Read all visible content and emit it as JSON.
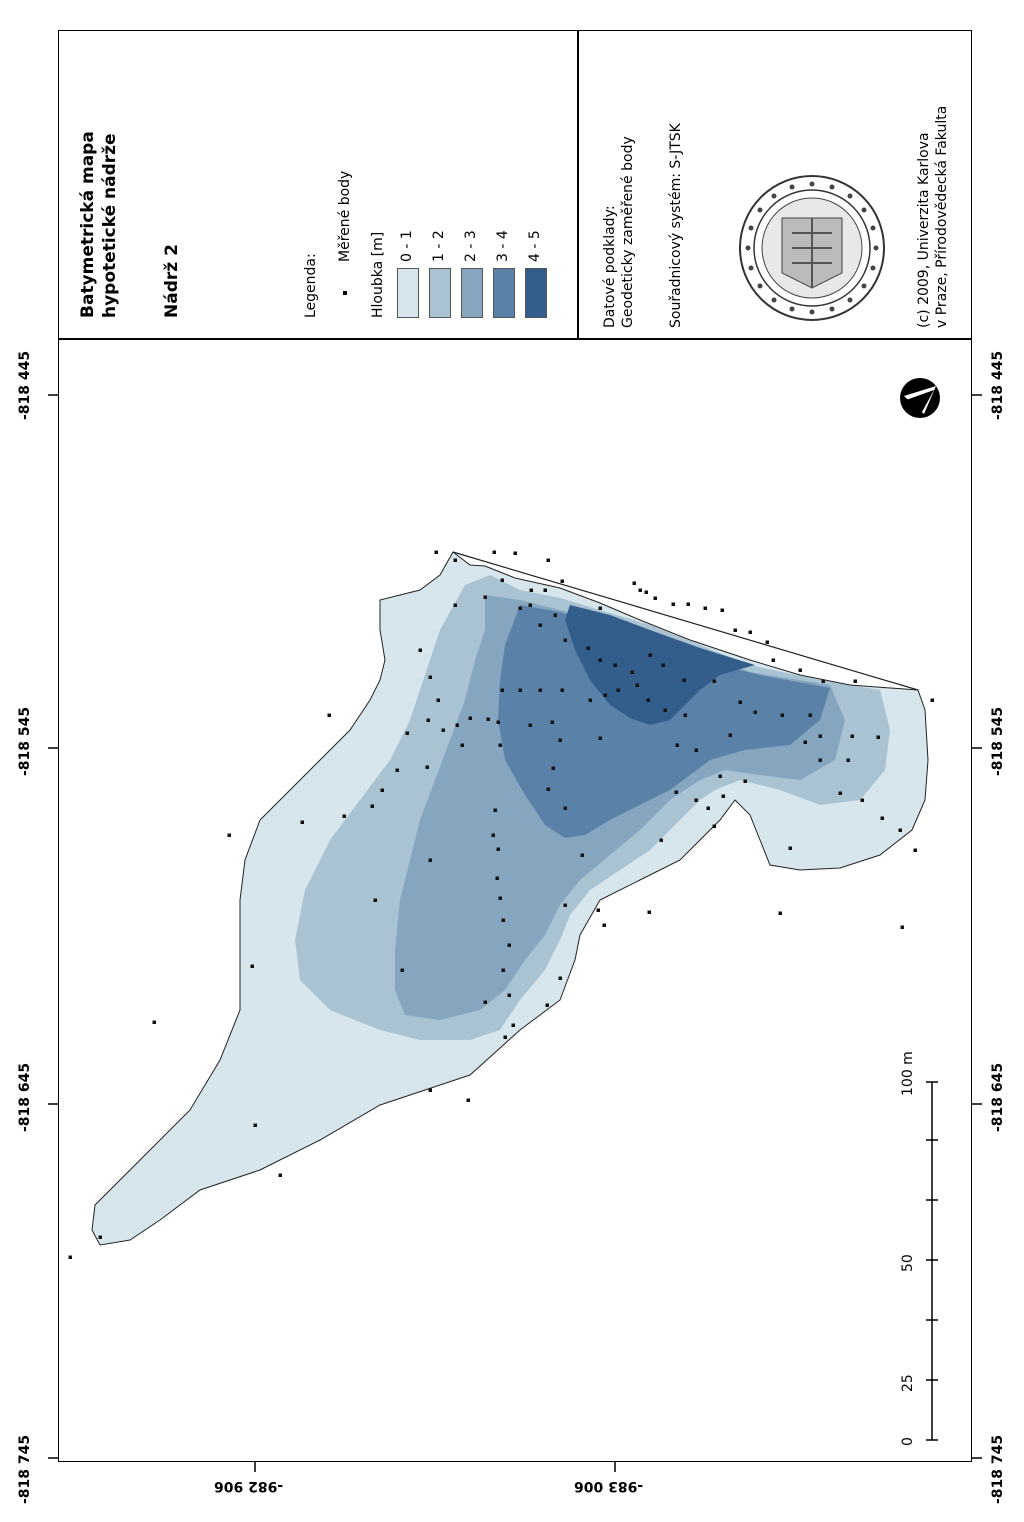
{
  "title": {
    "line1": "Batymetrická mapa",
    "line2": "hypotetické nádrže",
    "subtitle": "Nádrž 2"
  },
  "legend": {
    "heading": "Legenda:",
    "points_label": "Měřené body",
    "depth_heading": "Hloubka [m]",
    "classes": [
      {
        "label": "0 - 1",
        "color": "#d6e6ec"
      },
      {
        "label": "1 - 2",
        "color": "#aac3d2"
      },
      {
        "label": "2 - 3",
        "color": "#86a6bf"
      },
      {
        "label": "3 - 4",
        "color": "#5a82a8"
      },
      {
        "label": "4 - 5",
        "color": "#335e8b"
      }
    ]
  },
  "source": {
    "line1": "Datové podklady:",
    "line2": "Geodeticky zaměřené body",
    "crs": "Souřadnicový systém: S-JTSK"
  },
  "credit": {
    "line1": "(c) 2009, Univerzita Karlova",
    "line2": "v Praze, Přírodovědecká Fakulta"
  },
  "grid": {
    "y_ticks": [
      "-818 445",
      "-818 545",
      "-818 645",
      "-818 745"
    ],
    "x_ticks": [
      "-982 906",
      "-983 006"
    ]
  },
  "scalebar": {
    "labels": [
      "0",
      "25",
      "50",
      "100 m"
    ]
  }
}
